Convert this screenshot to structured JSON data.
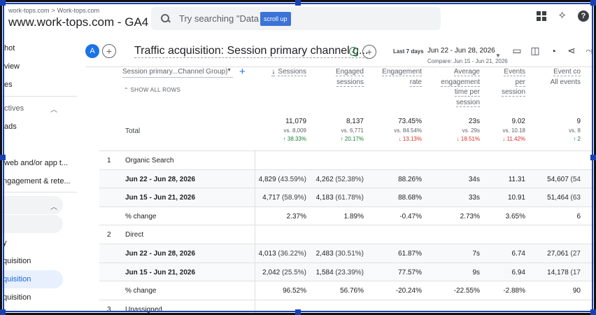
{
  "header": {
    "breadcrumb": [
      "work-tops.com",
      "Work-tops.com"
    ],
    "property": "www.work-tops.com - GA4",
    "search_placeholder": "Try searching \"Data Stre",
    "scroll_tip": "scroll up"
  },
  "sidebar": {
    "items": [
      {
        "label": "hot"
      },
      {
        "label": "view"
      },
      {
        "label": "es"
      },
      {
        "label": "ctives"
      },
      {
        "label": "ads"
      },
      {
        "label": "web and/or app t..."
      },
      {
        "label": "ngagement & rete..."
      },
      {
        "label": "y"
      },
      {
        "label": "quisition"
      },
      {
        "label": "quisition"
      },
      {
        "label": "quisition"
      }
    ]
  },
  "report": {
    "avatar": "A",
    "title": "Traffic acquisition: Session primary channel g...",
    "date_badge": "Last 7 days",
    "date_range": "Jun 22 - Jun 28, 2026",
    "compare": "Compare: Jun 15 - Jun 21, 2026"
  },
  "table": {
    "dimension": "Session primary...Channel Group)",
    "show_all": "SHOW ALL ROWS",
    "columns": [
      {
        "l1": "Sessions",
        "l2": "",
        "l3": "",
        "l4": ""
      },
      {
        "l1": "Engaged",
        "l2": "sessions",
        "l3": "",
        "l4": ""
      },
      {
        "l1": "Engagement",
        "l2": "rate",
        "l3": "",
        "l4": ""
      },
      {
        "l1": "Average",
        "l2": "engagement",
        "l3": "time per",
        "l4": "session"
      },
      {
        "l1": "Events",
        "l2": "per",
        "l3": "session",
        "l4": ""
      },
      {
        "l1": "Event co",
        "l2": "All events",
        "l3": "",
        "l4": ""
      }
    ],
    "total_label": "Total",
    "totals": [
      {
        "value": "11,079",
        "vs": "vs. 8,009",
        "change": "↑ 38.33%",
        "dir": "up"
      },
      {
        "value": "8,137",
        "vs": "vs. 6,771",
        "change": "↑ 20.17%",
        "dir": "up"
      },
      {
        "value": "73.45%",
        "vs": "vs. 84.54%",
        "change": "↓ 13.13%",
        "dir": "down"
      },
      {
        "value": "23s",
        "vs": "vs. 29s",
        "change": "↓ 18.51%",
        "dir": "down"
      },
      {
        "value": "9.02",
        "vs": "vs. 10.18",
        "change": "↓ 11.42%",
        "dir": "down"
      },
      {
        "value": "9",
        "vs": "vs. 8",
        "change": "↑ 2",
        "dir": "up"
      }
    ],
    "rows": [
      {
        "type": "group",
        "idx": "1",
        "name": "Organic Search",
        "cells": [
          "",
          "",
          "",
          "",
          "",
          ""
        ]
      },
      {
        "type": "sub",
        "idx": "",
        "name": "Jun 22 - Jun 28, 2026",
        "cells": [
          "4,829 (43.59%)",
          "4,262 (52.38%)",
          "88.26%",
          "34s",
          "11.31",
          "54,607 (54"
        ]
      },
      {
        "type": "sub",
        "idx": "",
        "name": "Jun 15 - Jun 21, 2026",
        "cells": [
          "4,717 (58.9%)",
          "4,183 (61.78%)",
          "88.68%",
          "33s",
          "10.91",
          "51,464 (63"
        ]
      },
      {
        "type": "change",
        "idx": "",
        "name": "% change",
        "cells": [
          "2.37%",
          "1.89%",
          "-0.47%",
          "2.73%",
          "3.65%",
          "6"
        ]
      },
      {
        "type": "group",
        "idx": "2",
        "name": "Direct",
        "cells": [
          "",
          "",
          "",
          "",
          "",
          ""
        ]
      },
      {
        "type": "sub",
        "idx": "",
        "name": "Jun 22 - Jun 28, 2026",
        "cells": [
          "4,013 (36.22%)",
          "2,483 (30.51%)",
          "61.87%",
          "7s",
          "6.74",
          "27,061 (27"
        ]
      },
      {
        "type": "sub",
        "idx": "",
        "name": "Jun 15 - Jun 21, 2026",
        "cells": [
          "2,042 (25.5%)",
          "1,584 (23.39%)",
          "77.57%",
          "9s",
          "6.94",
          "14,178 (17"
        ]
      },
      {
        "type": "change",
        "idx": "",
        "name": "% change",
        "cells": [
          "96.52%",
          "56.76%",
          "-20.24%",
          "-22.55%",
          "-2.88%",
          "90"
        ]
      },
      {
        "type": "group",
        "idx": "3",
        "name": "Unassigned",
        "cells": [
          "",
          "",
          "",
          "",
          "",
          ""
        ]
      }
    ]
  }
}
